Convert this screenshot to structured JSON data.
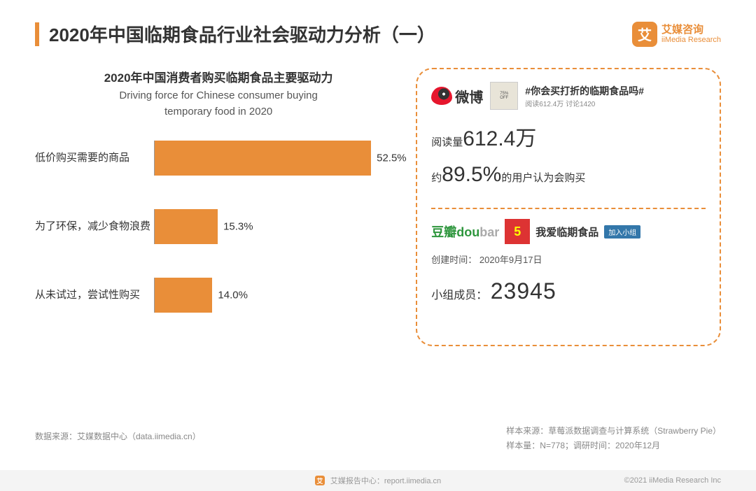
{
  "accent_color": "#e98e39",
  "header": {
    "title": "2020年中国临期食品行业社会驱动力分析（一）",
    "logo_cn": "艾媒咨询",
    "logo_en": "iiMedia Research",
    "logo_mark": "艾"
  },
  "chart": {
    "type": "bar",
    "title_cn": "2020年中国消费者购买临期食品主要驱动力",
    "title_en_1": "Driving force for Chinese consumer buying",
    "title_en_2": "temporary food in 2020",
    "bar_color": "#e98e39",
    "axis_color": "#999999",
    "max_pct": 60,
    "label_fontsize": 15,
    "value_fontsize": 15,
    "bars": [
      {
        "label": "低价购买需要的商品",
        "value": 52.5,
        "display": "52.5%"
      },
      {
        "label": "为了环保，减少食物浪费",
        "value": 15.3,
        "display": "15.3%"
      },
      {
        "label": "从未试过，尝试性购买",
        "value": 14.0,
        "display": "14.0%"
      }
    ]
  },
  "side": {
    "weibo": {
      "name": "微博",
      "thumb_top": "75%",
      "thumb_bot": "OFF",
      "topic": "#你会买打折的临期食品吗#",
      "meta": "阅读612.4万  讨论1420",
      "read_prefix": "阅读量",
      "read_value": "612.4万",
      "buy_prefix": "约",
      "buy_value": "89.5%",
      "buy_suffix": "的用户认为会购买"
    },
    "douban": {
      "logo_cn": "豆瓣",
      "logo_en_g": "dou",
      "logo_en_gray": "bar",
      "thumb": "5",
      "group": "我爱临期食品",
      "join": "加入小组",
      "created_label": "创建时间：",
      "created_value": "2020年9月17日",
      "member_label": "小组成员：",
      "member_value": "23945"
    }
  },
  "footer": {
    "left": "数据来源：艾媒数据中心（data.iimedia.cn）",
    "right_1": "样本来源：草莓派数据调查与计算系统（Strawberry Pie）",
    "right_2": "样本量：N=778；调研时间：2020年12月",
    "bottom_center": "艾媒报告中心：report.iimedia.cn",
    "bottom_right": "©2021  iiMedia Research  Inc"
  }
}
